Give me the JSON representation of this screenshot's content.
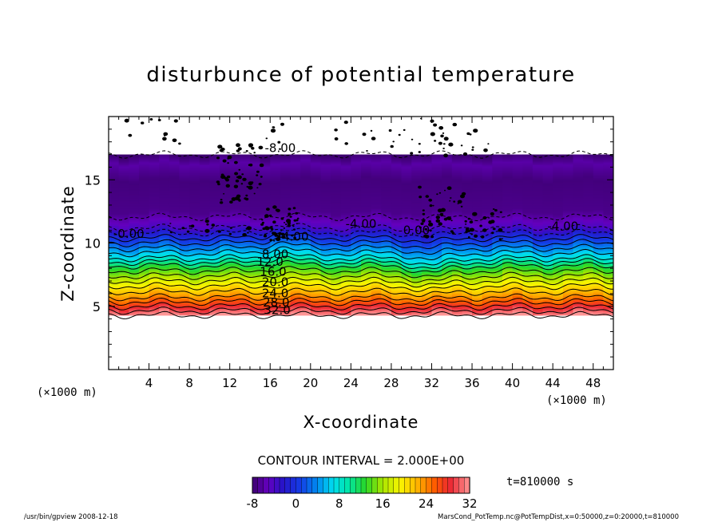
{
  "chart_data": {
    "type": "heatmap",
    "title": "disturbunce of potential temperature",
    "xlabel": "X-coordinate",
    "ylabel": "Z-coordinate",
    "x_unit": "(×1000 m)",
    "y_unit": "(×1000 m)",
    "xlim": [
      0,
      50
    ],
    "ylim": [
      0,
      20
    ],
    "x_ticks": [
      4,
      8,
      12,
      16,
      20,
      24,
      28,
      32,
      36,
      40,
      44,
      48
    ],
    "y_ticks": [
      5,
      10,
      15
    ],
    "contour_interval_label": "CONTOUR INTERVAL = 2.000E+00",
    "time_label": "t=810000 s",
    "colorbar": {
      "min": -8,
      "max": 32,
      "tick_labels": [
        "-8",
        "0",
        "8",
        "16",
        "24",
        "32"
      ],
      "tick_values": [
        -8,
        0,
        8,
        16,
        24,
        32
      ]
    },
    "contour_labels": [
      {
        "text": "-8.00",
        "x": 17.0,
        "z": 17.2
      },
      {
        "text": "-4.00",
        "x": 25.0,
        "z": 11.2
      },
      {
        "text": "-4.00",
        "x": 45.0,
        "z": 11.0
      },
      {
        "text": "-0.00",
        "x": 2.0,
        "z": 10.4
      },
      {
        "text": "0.00",
        "x": 30.5,
        "z": 10.7
      },
      {
        "text": "4.00",
        "x": 18.5,
        "z": 10.2
      },
      {
        "text": "8.00",
        "x": 16.5,
        "z": 8.8
      },
      {
        "text": "12.0",
        "x": 16.0,
        "z": 8.2
      },
      {
        "text": "16.0",
        "x": 16.3,
        "z": 7.4
      },
      {
        "text": "20.0",
        "x": 16.5,
        "z": 6.6
      },
      {
        "text": "24.0",
        "x": 16.5,
        "z": 5.7
      },
      {
        "text": "28.0",
        "x": 16.6,
        "z": 5.0
      },
      {
        "text": "32.0",
        "x": 16.7,
        "z": 4.4
      }
    ],
    "contour_levels": [
      -8,
      -6,
      -4,
      -2,
      0,
      2,
      4,
      6,
      8,
      10,
      12,
      14,
      16,
      18,
      20,
      22,
      24,
      26,
      28,
      30,
      32
    ],
    "field_extent": {
      "z_bottom": 4.3,
      "z_top": 17.0
    }
  },
  "footer": {
    "left": "/usr/bin/gpview   2008-12-18",
    "right": "MarsCond_PotTemp.nc@PotTempDist,x=0:50000,z=0:20000,t=810000"
  }
}
